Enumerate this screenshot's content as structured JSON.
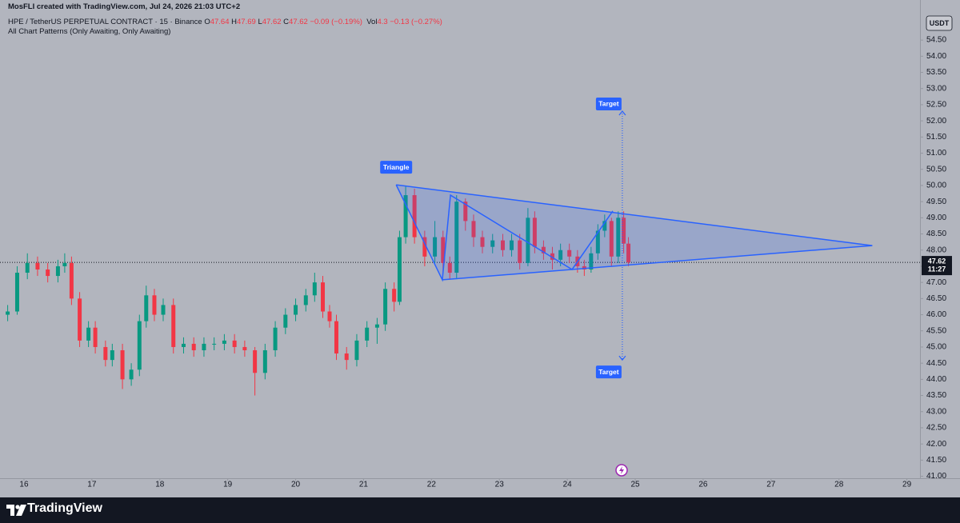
{
  "chart_data": {
    "type": "candlestick",
    "credit": "MosFLI created with TradingView.com, Jul 24, 2026 21:03 UTC+2",
    "symbol": "HPE / TetherUS PERPETUAL CONTRACT · 15 · Binance",
    "ohlc": [
      {
        "key": "O",
        "value": 47.64
      },
      {
        "key": "H",
        "value": 47.69
      },
      {
        "key": "L",
        "value": 47.62
      },
      {
        "key": "C",
        "value": 47.62
      }
    ],
    "change": "−0.09 (−0.19%)",
    "volume_key": "Vol",
    "volume": 4.3,
    "volume_change": "−0.13 (−0.27%)",
    "indicator": "All Chart Patterns (Only Awaiting, Only Awaiting)",
    "currency": "USDT",
    "brand": "TradingView",
    "up_color": "#089981",
    "down_color": "#f23645",
    "xlim": [
      15.647,
      29.193
    ],
    "ylim": [
      40.94,
      55.74
    ],
    "xticks": [
      16,
      17,
      18,
      19,
      20,
      21,
      22,
      23,
      24,
      25,
      26,
      27,
      28,
      29
    ],
    "yticks": [
      {
        "value": 41,
        "label": "41.00"
      },
      {
        "value": 41.5,
        "label": "41.50"
      },
      {
        "value": 42,
        "label": "42.00"
      },
      {
        "value": 42.5,
        "label": "42.50"
      },
      {
        "value": 43,
        "label": "43.00"
      },
      {
        "value": 43.5,
        "label": "43.50"
      },
      {
        "value": 44,
        "label": "44.00"
      },
      {
        "value": 44.5,
        "label": "44.50"
      },
      {
        "value": 45,
        "label": "45.00"
      },
      {
        "value": 45.5,
        "label": "45.50"
      },
      {
        "value": 46,
        "label": "46.00"
      },
      {
        "value": 46.5,
        "label": "46.50"
      },
      {
        "value": 47,
        "label": "47.00"
      },
      {
        "value": 47.5,
        "label": "47.50"
      },
      {
        "value": 48,
        "label": "48.00"
      },
      {
        "value": 48.5,
        "label": "48.50"
      },
      {
        "value": 49,
        "label": "49.00"
      },
      {
        "value": 49.5,
        "label": "49.50"
      },
      {
        "value": 50,
        "label": "50.00"
      },
      {
        "value": 50.5,
        "label": "50.50"
      },
      {
        "value": 51,
        "label": "51.00"
      },
      {
        "value": 51.5,
        "label": "51.50"
      },
      {
        "value": 52,
        "label": "52.00"
      },
      {
        "value": 52.5,
        "label": "52.50"
      },
      {
        "value": 53,
        "label": "53.00"
      },
      {
        "value": 53.5,
        "label": "53.50"
      },
      {
        "value": 54,
        "label": "54.00"
      },
      {
        "value": 54.5,
        "label": "54.50"
      }
    ],
    "x": [
      15.76,
      15.9,
      16.05,
      16.2,
      16.35,
      16.5,
      16.6,
      16.7,
      16.82,
      16.95,
      17.05,
      17.2,
      17.3,
      17.45,
      17.58,
      17.7,
      17.8,
      17.92,
      18.05,
      18.2,
      18.35,
      18.5,
      18.65,
      18.8,
      18.95,
      19.1,
      19.25,
      19.4,
      19.55,
      19.7,
      19.85,
      20.0,
      20.15,
      20.28,
      20.4,
      20.5,
      20.6,
      20.75,
      20.9,
      21.05,
      21.2,
      21.32,
      21.45,
      21.53,
      21.62,
      21.75,
      21.9,
      22.05,
      22.17,
      22.27,
      22.37,
      22.5,
      22.62,
      22.75,
      22.9,
      23.05,
      23.18,
      23.3,
      23.42,
      23.52,
      23.65,
      23.78,
      23.9,
      24.03,
      24.15,
      24.25,
      24.35,
      24.45,
      24.55,
      24.65,
      24.75,
      24.83,
      24.9
    ],
    "open": [
      46.0,
      46.1,
      47.3,
      47.6,
      47.4,
      47.2,
      47.5,
      47.6,
      46.5,
      45.2,
      45.6,
      45.0,
      44.6,
      44.9,
      44.0,
      44.3,
      45.8,
      46.6,
      46.0,
      46.3,
      45.0,
      45.1,
      44.9,
      45.1,
      45.1,
      45.2,
      45.0,
      44.9,
      44.2,
      44.9,
      45.6,
      46.0,
      46.3,
      46.6,
      47.0,
      46.1,
      45.8,
      44.8,
      44.6,
      45.2,
      45.6,
      45.7,
      46.8,
      46.4,
      48.4,
      49.7,
      48.4,
      47.8,
      48.4,
      47.6,
      47.3,
      49.5,
      48.9,
      48.4,
      48.1,
      48.3,
      48.0,
      48.3,
      47.6,
      49.0,
      48.1,
      47.9,
      47.7,
      48.0,
      47.8,
      47.5,
      47.4,
      47.9,
      48.6,
      48.9,
      47.8,
      49.0,
      48.2
    ],
    "high": [
      46.3,
      47.5,
      47.9,
      47.8,
      47.6,
      47.7,
      47.9,
      47.8,
      46.7,
      45.8,
      45.8,
      45.2,
      45.1,
      45.1,
      44.5,
      46.0,
      46.9,
      46.8,
      46.5,
      46.5,
      45.3,
      45.3,
      45.3,
      45.3,
      45.4,
      45.4,
      45.2,
      45.0,
      45.1,
      45.8,
      46.2,
      46.5,
      46.8,
      47.3,
      47.2,
      46.3,
      46.0,
      45.0,
      45.4,
      45.8,
      45.9,
      47.0,
      47.0,
      48.6,
      50.0,
      49.9,
      48.6,
      48.9,
      48.6,
      47.8,
      49.7,
      49.6,
      49.1,
      48.6,
      48.5,
      48.5,
      48.5,
      48.5,
      49.3,
      49.2,
      48.3,
      48.1,
      48.2,
      48.2,
      48.0,
      47.7,
      48.1,
      48.8,
      49.1,
      49.0,
      49.2,
      49.2,
      48.4
    ],
    "low": [
      45.8,
      46.0,
      47.1,
      47.2,
      47.0,
      47.0,
      47.3,
      46.3,
      45.0,
      45.0,
      44.8,
      44.4,
      44.4,
      43.7,
      43.8,
      44.1,
      45.6,
      45.8,
      45.8,
      44.8,
      44.8,
      44.7,
      44.7,
      44.9,
      44.9,
      44.8,
      44.7,
      43.5,
      44.0,
      44.7,
      45.4,
      45.8,
      46.1,
      46.4,
      45.9,
      45.6,
      44.6,
      44.3,
      44.4,
      45.0,
      45.1,
      45.5,
      46.1,
      46.3,
      48.2,
      48.2,
      47.5,
      47.6,
      47.3,
      47.1,
      47.1,
      48.6,
      48.1,
      47.9,
      47.9,
      47.8,
      47.8,
      47.4,
      47.5,
      47.9,
      47.7,
      47.4,
      47.5,
      47.6,
      47.3,
      47.2,
      47.3,
      47.7,
      48.4,
      47.5,
      47.6,
      47.9,
      47.5
    ],
    "close": [
      46.1,
      47.3,
      47.6,
      47.4,
      47.2,
      47.5,
      47.6,
      46.5,
      45.2,
      45.6,
      45.0,
      44.6,
      44.9,
      44.0,
      44.3,
      45.8,
      46.6,
      46.0,
      46.3,
      45.0,
      45.1,
      44.9,
      45.1,
      45.1,
      45.2,
      45.0,
      44.9,
      44.2,
      44.9,
      45.6,
      46.0,
      46.3,
      46.6,
      47.0,
      46.1,
      45.8,
      44.8,
      44.6,
      45.2,
      45.6,
      45.7,
      46.8,
      46.4,
      48.4,
      49.7,
      48.4,
      47.8,
      48.4,
      47.6,
      47.3,
      49.5,
      48.9,
      48.4,
      48.1,
      48.3,
      48.0,
      48.3,
      47.6,
      49.0,
      48.1,
      47.9,
      47.7,
      48.0,
      47.8,
      47.5,
      47.4,
      47.9,
      48.6,
      48.9,
      47.8,
      49.0,
      48.2,
      47.62
    ],
    "pattern": {
      "label": "Triangle",
      "color": "#2962ff",
      "points": {
        "x": [
          21.48,
          22.16,
          22.28,
          24.07,
          24.67
        ],
        "y": [
          50.02,
          47.08,
          49.7,
          47.4,
          49.21
        ]
      },
      "apex": {
        "x": 28.49,
        "y": 48.14
      }
    },
    "targets": {
      "x": 24.81,
      "label": "Target",
      "values": [
        52.3,
        44.6
      ]
    },
    "last_price": {
      "value": 47.62,
      "countdown": "11:27"
    }
  }
}
